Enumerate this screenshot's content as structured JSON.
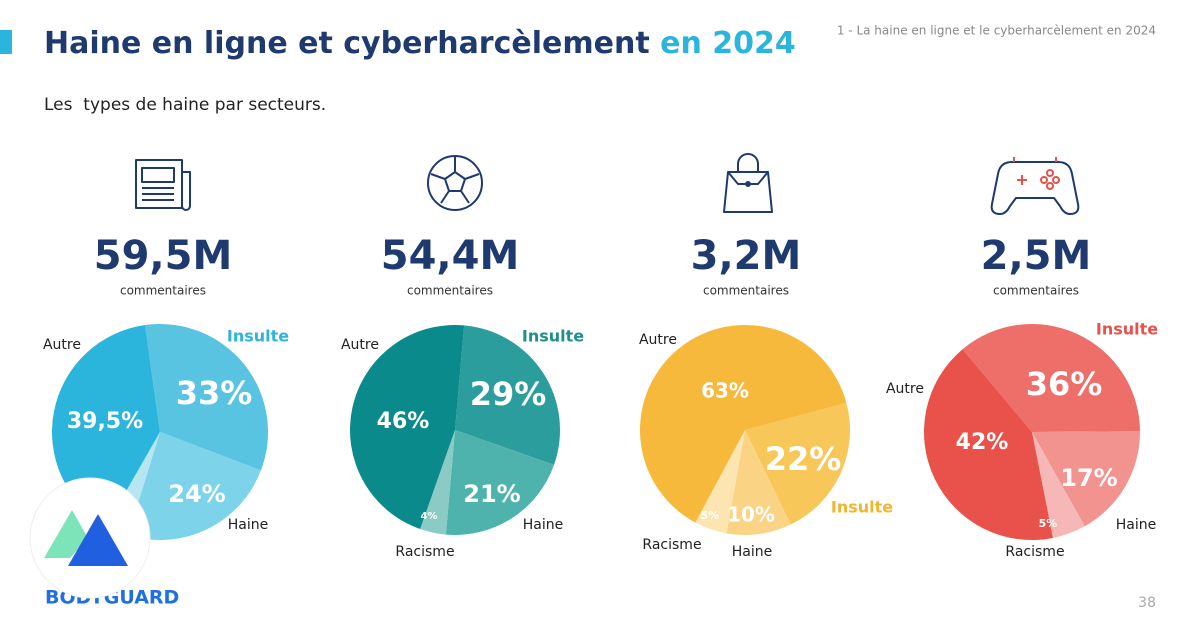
{
  "header": {
    "title": "Haine en ligne et cyberharcèlement",
    "title_highlight": "en 2024",
    "breadcrumb": "1 - La haine en ligne et le cyberharcèlement en 2024",
    "subtitle": "Les  types de haine par secteurs."
  },
  "footer": {
    "brand": "BODYGUARD",
    "page_number": "38"
  },
  "chart_data": [
    {
      "type": "pie",
      "title": "59,5M",
      "subtitle": "commentaires",
      "categories": [
        "Insulte",
        "Haine",
        null,
        "Autre"
      ],
      "values": [
        33,
        24,
        3.5,
        39.5
      ],
      "value_labels": [
        "33%",
        "24%",
        null,
        "39,5%"
      ],
      "colors": [
        "#58c4e2",
        "#7dd3ea",
        "#b5e6f2",
        "#2cb5dc"
      ],
      "highlight_color": "#2cb5dc"
    },
    {
      "type": "pie",
      "title": "54,4M",
      "subtitle": "commentaires",
      "categories": [
        "Insulte",
        "Haine",
        "Racisme",
        "Autre"
      ],
      "values": [
        29,
        21,
        4,
        46
      ],
      "value_labels": [
        "29%",
        "21%",
        "4%",
        "46%"
      ],
      "colors": [
        "#2a9d9c",
        "#4fb3ad",
        "#8ccbc5",
        "#0a8a8a"
      ],
      "highlight_color": "#1e8f90"
    },
    {
      "type": "pie",
      "title": "3,2M",
      "subtitle": "commentaires",
      "categories": [
        "Insulte",
        "Haine",
        "Racisme",
        "Autre"
      ],
      "values": [
        22,
        10,
        5,
        63
      ],
      "value_labels": [
        "22%",
        "10%",
        "5%",
        "63%"
      ],
      "colors": [
        "#f8c75a",
        "#fad484",
        "#fce5b0",
        "#f6b93b"
      ],
      "highlight_color": "#f3b52e"
    },
    {
      "type": "pie",
      "title": "2,5M",
      "subtitle": "commentaires",
      "categories": [
        "Insulte",
        "Haine",
        "Racisme",
        "Autre"
      ],
      "values": [
        36,
        17,
        5,
        42
      ],
      "value_labels": [
        "36%",
        "17%",
        "5%",
        "42%"
      ],
      "colors": [
        "#ee6f6a",
        "#f29390",
        "#f6b8b6",
        "#e8524a"
      ],
      "highlight_color": "#e8524a"
    }
  ]
}
